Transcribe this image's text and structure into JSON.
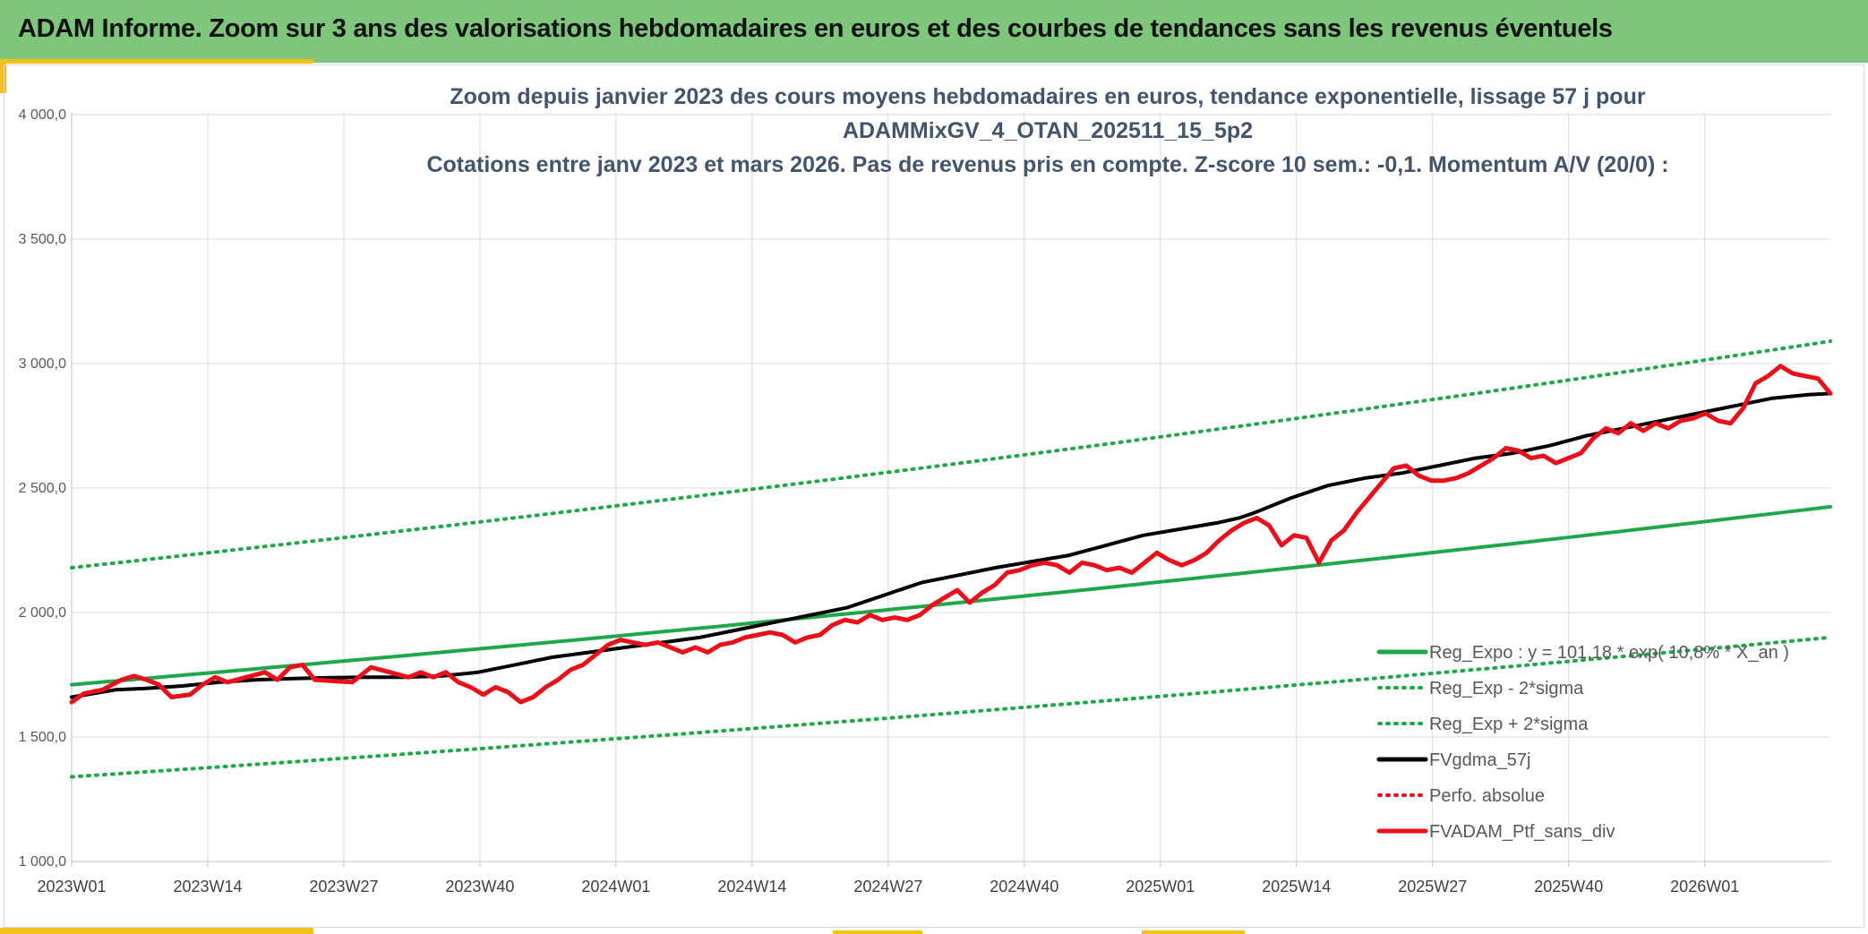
{
  "header": {
    "title": "ADAM Informe. Zoom sur 3 ans des valorisations hebdomadaires en euros et des courbes de tendances sans les revenus éventuels"
  },
  "colors": {
    "header_bg": "#7dc67b",
    "accent": "#f2c21a",
    "reg_green": "#1fa84a",
    "black": "#000000",
    "red": "#e8101a"
  },
  "chart_data": {
    "type": "line",
    "title_lines": [
      "Zoom depuis janvier 2023 des cours moyens hebdomadaires en euros, tendance exponentielle, lissage 57 j pour",
      "ADAMMixGV_4_OTAN_202511_15_5p2",
      "Cotations entre janv 2023 et mars 2026. Pas de revenus pris en compte. Z-score 10 sem.: -0,1. Momentum A/V (20/0) :"
    ],
    "y_axis": {
      "min": 1000,
      "max": 4000,
      "step": 500,
      "tick_labels": [
        "1 000,0",
        "1 500,0",
        "2 000,0",
        "2 500,0",
        "3 000,0",
        "3 500,0",
        "4 000,0"
      ]
    },
    "x_axis": {
      "tick_labels": [
        "2023W01",
        "2023W14",
        "2023W27",
        "2023W40",
        "2024W01",
        "2024W14",
        "2024W27",
        "2024W40",
        "2025W01",
        "2025W14",
        "2025W27",
        "2025W40",
        "2026W01"
      ],
      "weeks_total": 168,
      "tick_step": 13
    },
    "grid": true,
    "legend_position": "bottom-right inside plot",
    "series": [
      {
        "name": "Reg_Expo : y = 101,18 * exp( 10,8% * X_an )",
        "style": "solid",
        "color": "#1fa84a",
        "values_at_endpoints": [
          1710,
          2425
        ]
      },
      {
        "name": "Reg_Exp - 2*sigma",
        "style": "dotted",
        "color": "#1fa84a",
        "values_at_endpoints": [
          1340,
          1900
        ]
      },
      {
        "name": "Reg_Exp + 2*sigma",
        "style": "dotted",
        "color": "#1fa84a",
        "values_at_endpoints": [
          2180,
          3090
        ]
      },
      {
        "name": "FVgdma_57j",
        "style": "solid",
        "color": "#000000",
        "points": [
          [
            0,
            1660
          ],
          [
            6,
            1690
          ],
          [
            10,
            1695
          ],
          [
            15,
            1705
          ],
          [
            20,
            1720
          ],
          [
            25,
            1730
          ],
          [
            30,
            1735
          ],
          [
            35,
            1738
          ],
          [
            40,
            1740
          ],
          [
            45,
            1740
          ],
          [
            50,
            1745
          ],
          [
            55,
            1760
          ],
          [
            60,
            1790
          ],
          [
            65,
            1820
          ],
          [
            70,
            1840
          ],
          [
            75,
            1860
          ],
          [
            80,
            1880
          ],
          [
            85,
            1900
          ],
          [
            90,
            1930
          ],
          [
            95,
            1960
          ],
          [
            100,
            1990
          ],
          [
            105,
            2020
          ],
          [
            110,
            2070
          ],
          [
            115,
            2120
          ],
          [
            120,
            2150
          ],
          [
            125,
            2180
          ],
          [
            130,
            2205
          ],
          [
            135,
            2230
          ],
          [
            140,
            2270
          ],
          [
            145,
            2310
          ],
          [
            150,
            2335
          ],
          [
            155,
            2360
          ],
          [
            158,
            2380
          ],
          [
            160,
            2400
          ],
          [
            165,
            2460
          ],
          [
            170,
            2510
          ],
          [
            175,
            2540
          ],
          [
            180,
            2560
          ],
          [
            185,
            2590
          ],
          [
            190,
            2620
          ],
          [
            195,
            2640
          ],
          [
            200,
            2670
          ],
          [
            205,
            2710
          ],
          [
            210,
            2740
          ],
          [
            215,
            2770
          ],
          [
            220,
            2800
          ],
          [
            225,
            2830
          ],
          [
            230,
            2860
          ],
          [
            235,
            2875
          ],
          [
            238,
            2880
          ]
        ]
      },
      {
        "name": "Perfo. absolue",
        "style": "dotted",
        "color": "#e8101a",
        "points": []
      },
      {
        "name": "FVADAM_Ptf_sans_div",
        "style": "solid",
        "color": "#e8101a",
        "points": [
          [
            0,
            1640
          ],
          [
            2,
            1675
          ],
          [
            5,
            1690
          ],
          [
            8,
            1730
          ],
          [
            10,
            1745
          ],
          [
            12,
            1730
          ],
          [
            14,
            1710
          ],
          [
            16,
            1660
          ],
          [
            19,
            1670
          ],
          [
            21,
            1710
          ],
          [
            23,
            1740
          ],
          [
            25,
            1720
          ],
          [
            28,
            1740
          ],
          [
            31,
            1760
          ],
          [
            33,
            1730
          ],
          [
            35,
            1780
          ],
          [
            37,
            1790
          ],
          [
            39,
            1730
          ],
          [
            42,
            1725
          ],
          [
            45,
            1720
          ],
          [
            48,
            1780
          ],
          [
            51,
            1760
          ],
          [
            54,
            1740
          ],
          [
            56,
            1760
          ],
          [
            58,
            1740
          ],
          [
            60,
            1760
          ],
          [
            62,
            1720
          ],
          [
            64,
            1700
          ],
          [
            66,
            1670
          ],
          [
            68,
            1700
          ],
          [
            70,
            1680
          ],
          [
            72,
            1640
          ],
          [
            74,
            1660
          ],
          [
            76,
            1700
          ],
          [
            78,
            1730
          ],
          [
            80,
            1770
          ],
          [
            82,
            1790
          ],
          [
            84,
            1830
          ],
          [
            86,
            1870
          ],
          [
            88,
            1890
          ],
          [
            90,
            1880
          ],
          [
            92,
            1870
          ],
          [
            94,
            1880
          ],
          [
            96,
            1860
          ],
          [
            98,
            1840
          ],
          [
            100,
            1860
          ],
          [
            102,
            1840
          ],
          [
            104,
            1870
          ],
          [
            106,
            1880
          ],
          [
            108,
            1900
          ],
          [
            110,
            1910
          ],
          [
            112,
            1920
          ],
          [
            114,
            1910
          ],
          [
            116,
            1880
          ],
          [
            118,
            1900
          ],
          [
            120,
            1910
          ],
          [
            122,
            1950
          ],
          [
            124,
            1970
          ],
          [
            126,
            1960
          ],
          [
            128,
            1990
          ],
          [
            130,
            1970
          ],
          [
            132,
            1980
          ],
          [
            134,
            1970
          ],
          [
            136,
            1990
          ],
          [
            138,
            2030
          ],
          [
            140,
            2060
          ],
          [
            142,
            2090
          ],
          [
            144,
            2040
          ],
          [
            146,
            2080
          ],
          [
            148,
            2110
          ],
          [
            150,
            2160
          ],
          [
            152,
            2170
          ],
          [
            154,
            2190
          ],
          [
            156,
            2200
          ],
          [
            158,
            2190
          ],
          [
            160,
            2160
          ],
          [
            162,
            2200
          ],
          [
            164,
            2190
          ],
          [
            166,
            2170
          ],
          [
            168,
            2180
          ],
          [
            170,
            2160
          ],
          [
            172,
            2200
          ],
          [
            174,
            2240
          ],
          [
            176,
            2210
          ],
          [
            178,
            2190
          ],
          [
            180,
            2210
          ],
          [
            182,
            2240
          ],
          [
            184,
            2290
          ],
          [
            186,
            2330
          ],
          [
            188,
            2360
          ],
          [
            190,
            2380
          ],
          [
            192,
            2350
          ],
          [
            194,
            2270
          ],
          [
            196,
            2310
          ],
          [
            198,
            2300
          ],
          [
            200,
            2200
          ],
          [
            202,
            2290
          ],
          [
            204,
            2330
          ],
          [
            206,
            2400
          ],
          [
            208,
            2460
          ],
          [
            210,
            2520
          ],
          [
            212,
            2580
          ],
          [
            214,
            2590
          ],
          [
            216,
            2550
          ],
          [
            218,
            2530
          ],
          [
            220,
            2530
          ],
          [
            222,
            2540
          ],
          [
            224,
            2560
          ],
          [
            226,
            2590
          ],
          [
            228,
            2620
          ],
          [
            230,
            2660
          ],
          [
            232,
            2650
          ],
          [
            234,
            2620
          ],
          [
            236,
            2630
          ],
          [
            238,
            2600
          ],
          [
            240,
            2620
          ],
          [
            242,
            2640
          ],
          [
            244,
            2700
          ],
          [
            246,
            2740
          ],
          [
            248,
            2720
          ],
          [
            250,
            2760
          ],
          [
            252,
            2730
          ],
          [
            254,
            2760
          ],
          [
            256,
            2740
          ],
          [
            258,
            2770
          ],
          [
            260,
            2780
          ],
          [
            262,
            2800
          ],
          [
            264,
            2770
          ],
          [
            266,
            2760
          ],
          [
            268,
            2820
          ],
          [
            270,
            2920
          ],
          [
            272,
            2950
          ],
          [
            274,
            2990
          ],
          [
            276,
            2960
          ],
          [
            278,
            2950
          ],
          [
            280,
            2940
          ],
          [
            282,
            2880
          ]
        ]
      }
    ]
  }
}
